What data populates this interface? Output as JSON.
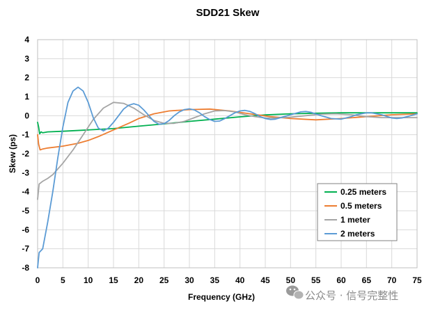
{
  "chart_data": {
    "type": "line",
    "title": "SDD21 Skew",
    "xlabel": "Frequency (GHz)",
    "ylabel": "Skew (ps)",
    "xlim": [
      0,
      75
    ],
    "ylim": [
      -8,
      4
    ],
    "xticks": [
      0,
      5,
      10,
      15,
      20,
      25,
      30,
      35,
      40,
      45,
      50,
      55,
      60,
      65,
      70,
      75
    ],
    "yticks": [
      -8,
      -7,
      -6,
      -5,
      -4,
      -3,
      -2,
      -1,
      0,
      1,
      2,
      3,
      4
    ],
    "grid": true,
    "legend_position": "bottom-right",
    "series": [
      {
        "name": "0.25 meters",
        "color": "#00b050",
        "points": [
          [
            0,
            -0.35
          ],
          [
            0.2,
            -0.6
          ],
          [
            0.4,
            -0.95
          ],
          [
            0.7,
            -0.85
          ],
          [
            1,
            -0.9
          ],
          [
            2,
            -0.85
          ],
          [
            5,
            -0.82
          ],
          [
            10,
            -0.75
          ],
          [
            15,
            -0.68
          ],
          [
            20,
            -0.55
          ],
          [
            25,
            -0.43
          ],
          [
            30,
            -0.3
          ],
          [
            35,
            -0.18
          ],
          [
            40,
            -0.06
          ],
          [
            45,
            0.04
          ],
          [
            50,
            0.1
          ],
          [
            55,
            0.13
          ],
          [
            60,
            0.15
          ],
          [
            65,
            0.15
          ],
          [
            70,
            0.15
          ],
          [
            75,
            0.15
          ]
        ]
      },
      {
        "name": "0.5 meters",
        "color": "#ed7d31",
        "points": [
          [
            0,
            -1.0
          ],
          [
            0.2,
            -1.5
          ],
          [
            0.5,
            -1.8
          ],
          [
            1,
            -1.75
          ],
          [
            2,
            -1.7
          ],
          [
            5,
            -1.6
          ],
          [
            8,
            -1.45
          ],
          [
            10,
            -1.3
          ],
          [
            12,
            -1.1
          ],
          [
            15,
            -0.75
          ],
          [
            18,
            -0.4
          ],
          [
            20,
            -0.15
          ],
          [
            23,
            0.1
          ],
          [
            26,
            0.25
          ],
          [
            30,
            0.32
          ],
          [
            34,
            0.35
          ],
          [
            38,
            0.25
          ],
          [
            42,
            0.1
          ],
          [
            46,
            -0.05
          ],
          [
            50,
            -0.15
          ],
          [
            55,
            -0.22
          ],
          [
            60,
            -0.15
          ],
          [
            65,
            -0.05
          ],
          [
            70,
            0.05
          ],
          [
            75,
            0.1
          ]
        ]
      },
      {
        "name": "1 meter",
        "color": "#a5a5a5",
        "points": [
          [
            0,
            -4.4
          ],
          [
            0.3,
            -3.6
          ],
          [
            1,
            -3.45
          ],
          [
            2,
            -3.3
          ],
          [
            3,
            -3.1
          ],
          [
            5,
            -2.5
          ],
          [
            7,
            -1.8
          ],
          [
            9,
            -1.0
          ],
          [
            11,
            -0.2
          ],
          [
            13,
            0.4
          ],
          [
            15,
            0.7
          ],
          [
            17,
            0.65
          ],
          [
            19,
            0.4
          ],
          [
            21,
            0.05
          ],
          [
            23,
            -0.25
          ],
          [
            25,
            -0.4
          ],
          [
            27,
            -0.4
          ],
          [
            29,
            -0.3
          ],
          [
            31,
            -0.1
          ],
          [
            33,
            0.1
          ],
          [
            35,
            0.25
          ],
          [
            37,
            0.27
          ],
          [
            39,
            0.2
          ],
          [
            41,
            0.05
          ],
          [
            43,
            -0.05
          ],
          [
            45,
            -0.12
          ],
          [
            47,
            -0.12
          ],
          [
            50,
            -0.08
          ],
          [
            53,
            0.0
          ],
          [
            56,
            0.08
          ],
          [
            59,
            0.1
          ],
          [
            62,
            0.05
          ],
          [
            65,
            -0.05
          ],
          [
            68,
            -0.1
          ],
          [
            71,
            -0.1
          ],
          [
            75,
            -0.1
          ]
        ]
      },
      {
        "name": "2 meters",
        "color": "#5b9bd5",
        "points": [
          [
            0,
            -8.0
          ],
          [
            0.3,
            -7.2
          ],
          [
            1,
            -7.0
          ],
          [
            2,
            -5.6
          ],
          [
            3,
            -4.0
          ],
          [
            4,
            -2.2
          ],
          [
            5,
            -0.6
          ],
          [
            6,
            0.7
          ],
          [
            7,
            1.3
          ],
          [
            8,
            1.5
          ],
          [
            9,
            1.3
          ],
          [
            10,
            0.7
          ],
          [
            11,
            -0.1
          ],
          [
            12,
            -0.65
          ],
          [
            13,
            -0.8
          ],
          [
            14,
            -0.65
          ],
          [
            15,
            -0.35
          ],
          [
            16,
            0.0
          ],
          [
            17,
            0.35
          ],
          [
            18,
            0.55
          ],
          [
            19,
            0.63
          ],
          [
            20,
            0.55
          ],
          [
            21,
            0.3
          ],
          [
            22,
            0.0
          ],
          [
            23,
            -0.3
          ],
          [
            24,
            -0.45
          ],
          [
            25,
            -0.42
          ],
          [
            26,
            -0.25
          ],
          [
            27,
            0.0
          ],
          [
            28,
            0.2
          ],
          [
            29,
            0.32
          ],
          [
            30,
            0.36
          ],
          [
            31,
            0.3
          ],
          [
            32,
            0.15
          ],
          [
            33,
            -0.05
          ],
          [
            34,
            -0.2
          ],
          [
            35,
            -0.3
          ],
          [
            36,
            -0.28
          ],
          [
            37,
            -0.15
          ],
          [
            38,
            0.0
          ],
          [
            39,
            0.15
          ],
          [
            40,
            0.25
          ],
          [
            41,
            0.28
          ],
          [
            42,
            0.22
          ],
          [
            43,
            0.1
          ],
          [
            44,
            -0.05
          ],
          [
            45,
            -0.15
          ],
          [
            46,
            -0.2
          ],
          [
            47,
            -0.18
          ],
          [
            48,
            -0.1
          ],
          [
            50,
            0.05
          ],
          [
            52,
            0.2
          ],
          [
            53,
            0.22
          ],
          [
            54,
            0.18
          ],
          [
            56,
            0.0
          ],
          [
            58,
            -0.15
          ],
          [
            60,
            -0.18
          ],
          [
            62,
            -0.05
          ],
          [
            63,
            0.05
          ],
          [
            65,
            0.15
          ],
          [
            66,
            0.15
          ],
          [
            68,
            0.05
          ],
          [
            70,
            -0.12
          ],
          [
            71,
            -0.15
          ],
          [
            72,
            -0.12
          ],
          [
            73,
            -0.05
          ],
          [
            75,
            0.1
          ]
        ]
      }
    ]
  },
  "watermark": {
    "text": "公众号 · 信号完整性",
    "icon": "wechat-icon"
  }
}
